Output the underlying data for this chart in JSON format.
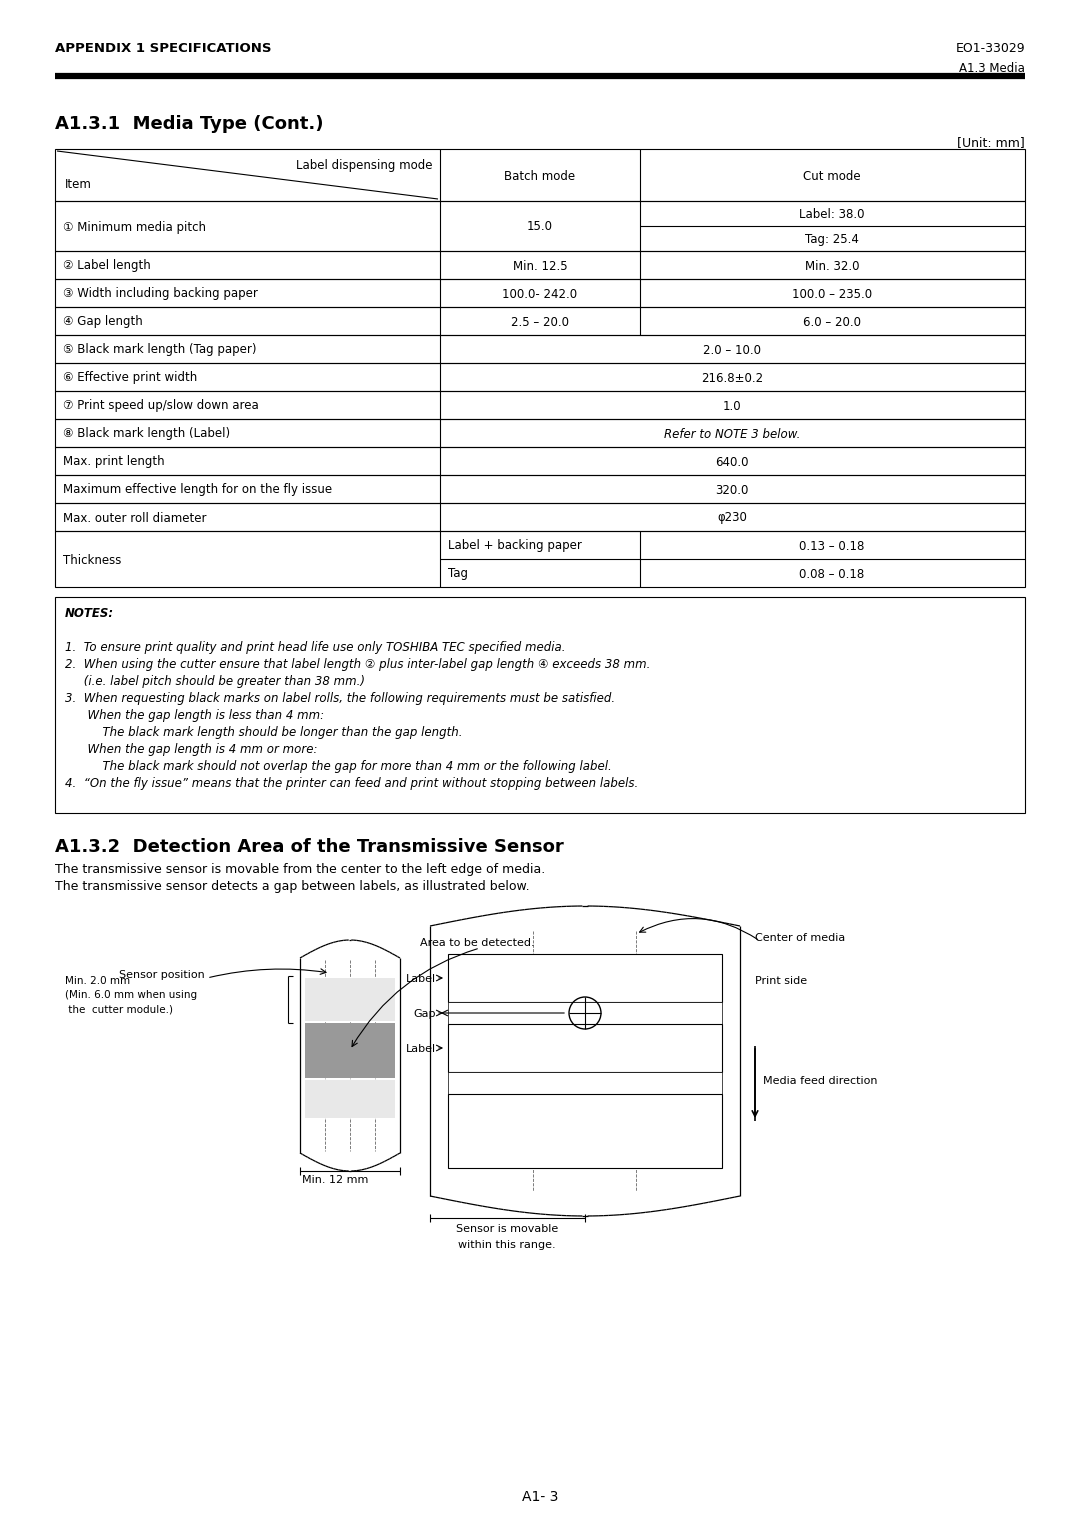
{
  "header_left": "APPENDIX 1 SPECIFICATIONS",
  "header_right": "EO1-33029",
  "subheader_right": "A1.3 Media",
  "section1_title": "A1.3.1  Media Type (Cont.)",
  "unit_label": "[Unit: mm]",
  "section2_title": "A1.3.2  Detection Area of the Transmissive Sensor",
  "section2_text1": "The transmissive sensor is movable from the center to the left edge of media.",
  "section2_text2": "The transmissive sensor detects a gap between labels, as illustrated below.",
  "page_number": "A1- 3",
  "bg_color": "#ffffff"
}
